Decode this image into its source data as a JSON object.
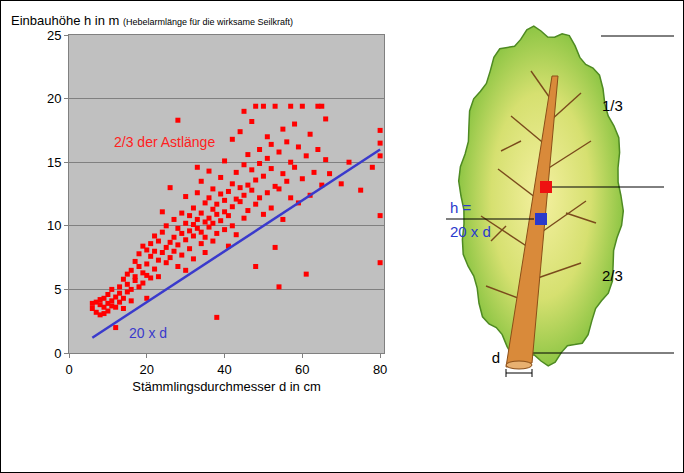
{
  "chart_data": {
    "type": "scatter",
    "ylabel": "Einbauhöhe h in m",
    "xlabel": "Stämmlingsdurchmesser d in cm",
    "xlim": [
      0,
      81
    ],
    "ylim": [
      0,
      25
    ],
    "xticks": [
      0,
      20,
      40,
      60,
      80
    ],
    "yticks": [
      0,
      5,
      10,
      15,
      20,
      25
    ],
    "grid": true,
    "annotations": [
      {
        "text": "(Hebelarmlänge für die wirksame Seilkraft)"
      },
      {
        "text": "2/3 der Astlänge",
        "x": 11,
        "y": 16.6,
        "color": "#ff2020"
      },
      {
        "text": "20 x d",
        "x": 15,
        "y": 1.6,
        "color": "#3a3acc"
      }
    ],
    "series": [
      {
        "type": "scatter",
        "marker": "square",
        "color": "#ff0000",
        "x": [
          6,
          6,
          7,
          7,
          8,
          8,
          8,
          9,
          9,
          9,
          10,
          10,
          10,
          11,
          11,
          11,
          12,
          12,
          12,
          13,
          13,
          13,
          14,
          14,
          14,
          15,
          15,
          15,
          16,
          16,
          16,
          17,
          17,
          17,
          18,
          18,
          18,
          19,
          19,
          19,
          20,
          20,
          20,
          20,
          21,
          21,
          21,
          22,
          22,
          22,
          23,
          23,
          23,
          24,
          24,
          24,
          25,
          25,
          25,
          26,
          26,
          26,
          27,
          27,
          27,
          28,
          28,
          28,
          28,
          29,
          29,
          29,
          30,
          30,
          30,
          30,
          31,
          31,
          31,
          32,
          32,
          32,
          32,
          33,
          33,
          33,
          33,
          34,
          34,
          34,
          34,
          35,
          35,
          35,
          35,
          36,
          36,
          36,
          36,
          37,
          37,
          37,
          37,
          38,
          38,
          38,
          38,
          39,
          39,
          39,
          40,
          40,
          40,
          40,
          41,
          41,
          41,
          42,
          42,
          42,
          42,
          43,
          43,
          43,
          44,
          44,
          44,
          45,
          45,
          45,
          45,
          46,
          46,
          46,
          47,
          47,
          47,
          48,
          48,
          48,
          48,
          49,
          49,
          49,
          50,
          50,
          50,
          51,
          51,
          51,
          52,
          52,
          52,
          53,
          53,
          53,
          54,
          54,
          54,
          55,
          55,
          55,
          56,
          56,
          57,
          57,
          57,
          58,
          58,
          59,
          59,
          60,
          60,
          61,
          61,
          62,
          62,
          63,
          64,
          64,
          65,
          65,
          66,
          66,
          67,
          70,
          72,
          75,
          78,
          80,
          80,
          80,
          80,
          80
        ],
        "values": [
          3.9,
          3.5,
          4,
          3.2,
          3.8,
          3,
          4.2,
          3.6,
          4.3,
          3.1,
          3.9,
          4.6,
          3.3,
          4.1,
          3.7,
          5,
          4.4,
          2,
          3.6,
          5.2,
          4,
          4.7,
          4.3,
          5.8,
          3.5,
          6.2,
          4.8,
          5.4,
          5,
          6.5,
          4.1,
          5.7,
          7.2,
          6,
          6.8,
          5.2,
          7.8,
          6.3,
          8.4,
          5.5,
          7,
          8.1,
          6.1,
          4.3,
          7.6,
          8.6,
          5.9,
          6.6,
          8,
          9.2,
          7.3,
          8.8,
          6,
          7.9,
          11.1,
          9.5,
          8.3,
          7.1,
          10,
          8.7,
          13,
          7.5,
          9.1,
          8,
          10.5,
          18.3,
          8.5,
          9.8,
          6.8,
          9.4,
          11,
          7.7,
          10.2,
          8.9,
          12.3,
          6.5,
          9.6,
          10.8,
          8.2,
          11.4,
          9.2,
          10.1,
          7.4,
          14.6,
          10.5,
          9.8,
          12.6,
          11,
          9.5,
          8.6,
          13.5,
          10.3,
          11.8,
          9.1,
          7.9,
          12.2,
          10.6,
          9.9,
          14.3,
          11.3,
          10.2,
          8.8,
          12.9,
          2.8,
          10.9,
          11.7,
          9.4,
          12.5,
          10.4,
          13.8,
          11.1,
          9.7,
          12,
          15.1,
          10.8,
          12.7,
          8.4,
          11.5,
          13.3,
          10,
          16.8,
          12.1,
          14.2,
          9.3,
          11.9,
          13,
          17.4,
          12.4,
          14.8,
          10.6,
          19,
          13.2,
          11.2,
          15.6,
          12.8,
          18.2,
          14.4,
          19.4,
          13.6,
          11.7,
          6.8,
          12.2,
          16,
          14.9,
          13.9,
          19.4,
          10.9,
          12.6,
          17,
          15.3,
          14.5,
          16.4,
          11.4,
          19.4,
          13.1,
          8.3,
          5.2,
          15.8,
          12.9,
          17.6,
          14.1,
          10.5,
          16.6,
          13.5,
          19.4,
          12.2,
          15,
          14.6,
          18,
          11.8,
          16.2,
          19.4,
          13.7,
          6.2,
          15.5,
          17.2,
          12.4,
          14.2,
          19.4,
          16,
          13.2,
          19.4,
          18.4,
          15.2,
          14.1,
          13.3,
          15,
          12.8,
          14.6,
          17.5,
          16.5,
          15.5,
          10.8,
          7.1
        ]
      },
      {
        "type": "line",
        "color": "#3a3acc",
        "x": [
          6,
          80
        ],
        "values": [
          1.2,
          16
        ]
      }
    ]
  },
  "diagram": {
    "section_labels": [
      "1/3",
      "2/3"
    ],
    "h_label": "h =",
    "h_formula": "20 x d",
    "diameter_label": "d"
  }
}
